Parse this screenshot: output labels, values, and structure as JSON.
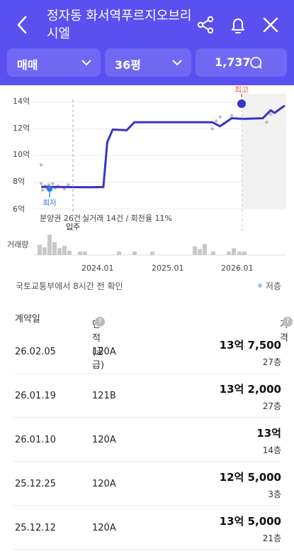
{
  "header": {
    "title": "정자동 화서역푸르지오브리시엘",
    "filters": [
      {
        "label": "매매"
      },
      {
        "label": "36평"
      },
      {
        "label": "1,737"
      }
    ]
  },
  "chart_data": {
    "type": "line",
    "x_tick_labels": [
      "2024.01",
      "2025.01",
      "2026.01"
    ],
    "y_tick_labels": [
      "14억",
      "12억",
      "10억",
      "8억",
      "6억"
    ],
    "ylim": [
      6,
      14
    ],
    "series": [
      {
        "values": [
          [
            2023.0,
            7.65
          ],
          [
            2023.6,
            7.62
          ],
          [
            2023.8,
            7.63
          ],
          [
            2023.85,
            11.0
          ],
          [
            2023.92,
            11.95
          ],
          [
            2024.1,
            11.9
          ],
          [
            2024.2,
            12.5
          ],
          [
            2024.6,
            12.5
          ],
          [
            2024.95,
            12.5
          ],
          [
            2025.2,
            12.5
          ],
          [
            2025.3,
            12.2
          ],
          [
            2025.45,
            12.8
          ],
          [
            2025.6,
            12.75
          ],
          [
            2025.85,
            12.8
          ],
          [
            2025.95,
            13.4
          ],
          [
            2026.0,
            13.2
          ],
          [
            2026.13,
            13.75
          ]
        ]
      }
    ],
    "annotations": {
      "max_label": "최고",
      "min_label": "최저",
      "move_in_label": "입주",
      "presale_note": "분양권 26건",
      "volume_label": "거래량"
    }
  },
  "info": {
    "summary_prefix": "실거래 14건 / 회전율 11%",
    "source_note": "국토교통부에서 8시간 전 확인",
    "legend_label": "저층"
  },
  "table": {
    "headers": {
      "date": "계약일",
      "area": "면적(공급)",
      "price": "가격"
    },
    "rows": [
      {
        "date": "26.02.05",
        "area": "120A",
        "price": "13억 7,500",
        "floor": "27층"
      },
      {
        "date": "26.01.19",
        "area": "121B",
        "price": "13억 2,000",
        "floor": "27층"
      },
      {
        "date": "26.01.10",
        "area": "120A",
        "price": "13억",
        "floor": "14층"
      },
      {
        "date": "25.12.25",
        "area": "120A",
        "price": "12억 5,000",
        "floor": "3층"
      },
      {
        "date": "25.12.12",
        "area": "120A",
        "price": "13억 5,000",
        "floor": "21층"
      }
    ]
  },
  "colors": {
    "brand": "#5a50f0",
    "line": "#3b33c7",
    "max": "#e8573c",
    "min": "#2c7be5"
  }
}
